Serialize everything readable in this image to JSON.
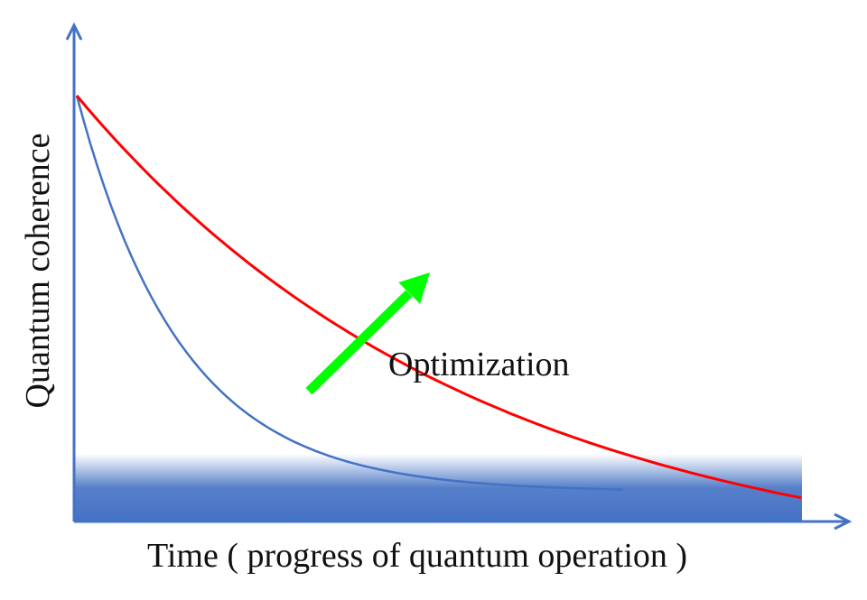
{
  "diagram": {
    "x_axis_label": "Time ( progress of quantum operation )",
    "y_axis_label": "Quantum coherence",
    "arrow_label": "Optimization",
    "colors": {
      "axis": "#4472c4",
      "optimized_curve": "#ff0000",
      "unoptimized_curve": "#4472c4",
      "arrow": "#00ff00",
      "noise_floor": "#4472c4"
    }
  }
}
